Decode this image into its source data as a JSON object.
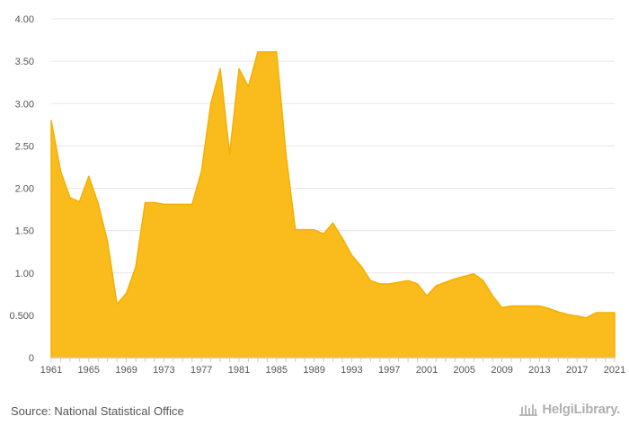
{
  "chart_data": {
    "type": "area",
    "x": [
      1961,
      1962,
      1963,
      1964,
      1965,
      1966,
      1967,
      1968,
      1969,
      1970,
      1971,
      1972,
      1973,
      1974,
      1975,
      1976,
      1977,
      1978,
      1979,
      1980,
      1981,
      1982,
      1983,
      1984,
      1985,
      1986,
      1987,
      1988,
      1989,
      1990,
      1991,
      1992,
      1993,
      1994,
      1995,
      1996,
      1997,
      1998,
      1999,
      2000,
      2001,
      2002,
      2003,
      2004,
      2005,
      2006,
      2007,
      2008,
      2009,
      2010,
      2011,
      2012,
      2013,
      2014,
      2015,
      2016,
      2017,
      2018,
      2019,
      2020,
      2021
    ],
    "series": [
      {
        "values": [
          2.8,
          2.2,
          1.89,
          1.84,
          2.14,
          1.82,
          1.37,
          0.63,
          0.76,
          1.07,
          1.83,
          1.83,
          1.81,
          1.81,
          1.81,
          1.81,
          2.2,
          3.0,
          3.41,
          2.4,
          3.41,
          3.2,
          3.61,
          3.61,
          3.61,
          2.4,
          1.51,
          1.51,
          1.51,
          1.46,
          1.59,
          1.41,
          1.21,
          1.08,
          0.91,
          0.87,
          0.87,
          0.89,
          0.91,
          0.87,
          0.73,
          0.85,
          0.89,
          0.93,
          0.96,
          0.99,
          0.91,
          0.73,
          0.59,
          0.61,
          0.61,
          0.61,
          0.61,
          0.58,
          0.54,
          0.51,
          0.49,
          0.47,
          0.53,
          0.53,
          0.53
        ]
      }
    ],
    "y_ticks": [
      "0",
      "0.500",
      "1.00",
      "1.50",
      "2.00",
      "2.50",
      "3.00",
      "3.50",
      "4.00"
    ],
    "x_ticks": [
      "1961",
      "1965",
      "1969",
      "1973",
      "1977",
      "1981",
      "1985",
      "1989",
      "1993",
      "1997",
      "2001",
      "2005",
      "2009",
      "2013",
      "2017",
      "2021"
    ],
    "ylim": [
      0,
      4
    ],
    "xlim": [
      1961,
      2021
    ],
    "grid": true,
    "fill_color": "#f9bc1c",
    "stroke_color": "#f3b000"
  },
  "footer": {
    "source": "Source: National Statistical Office",
    "logo_text": "HelgiLibrary."
  }
}
